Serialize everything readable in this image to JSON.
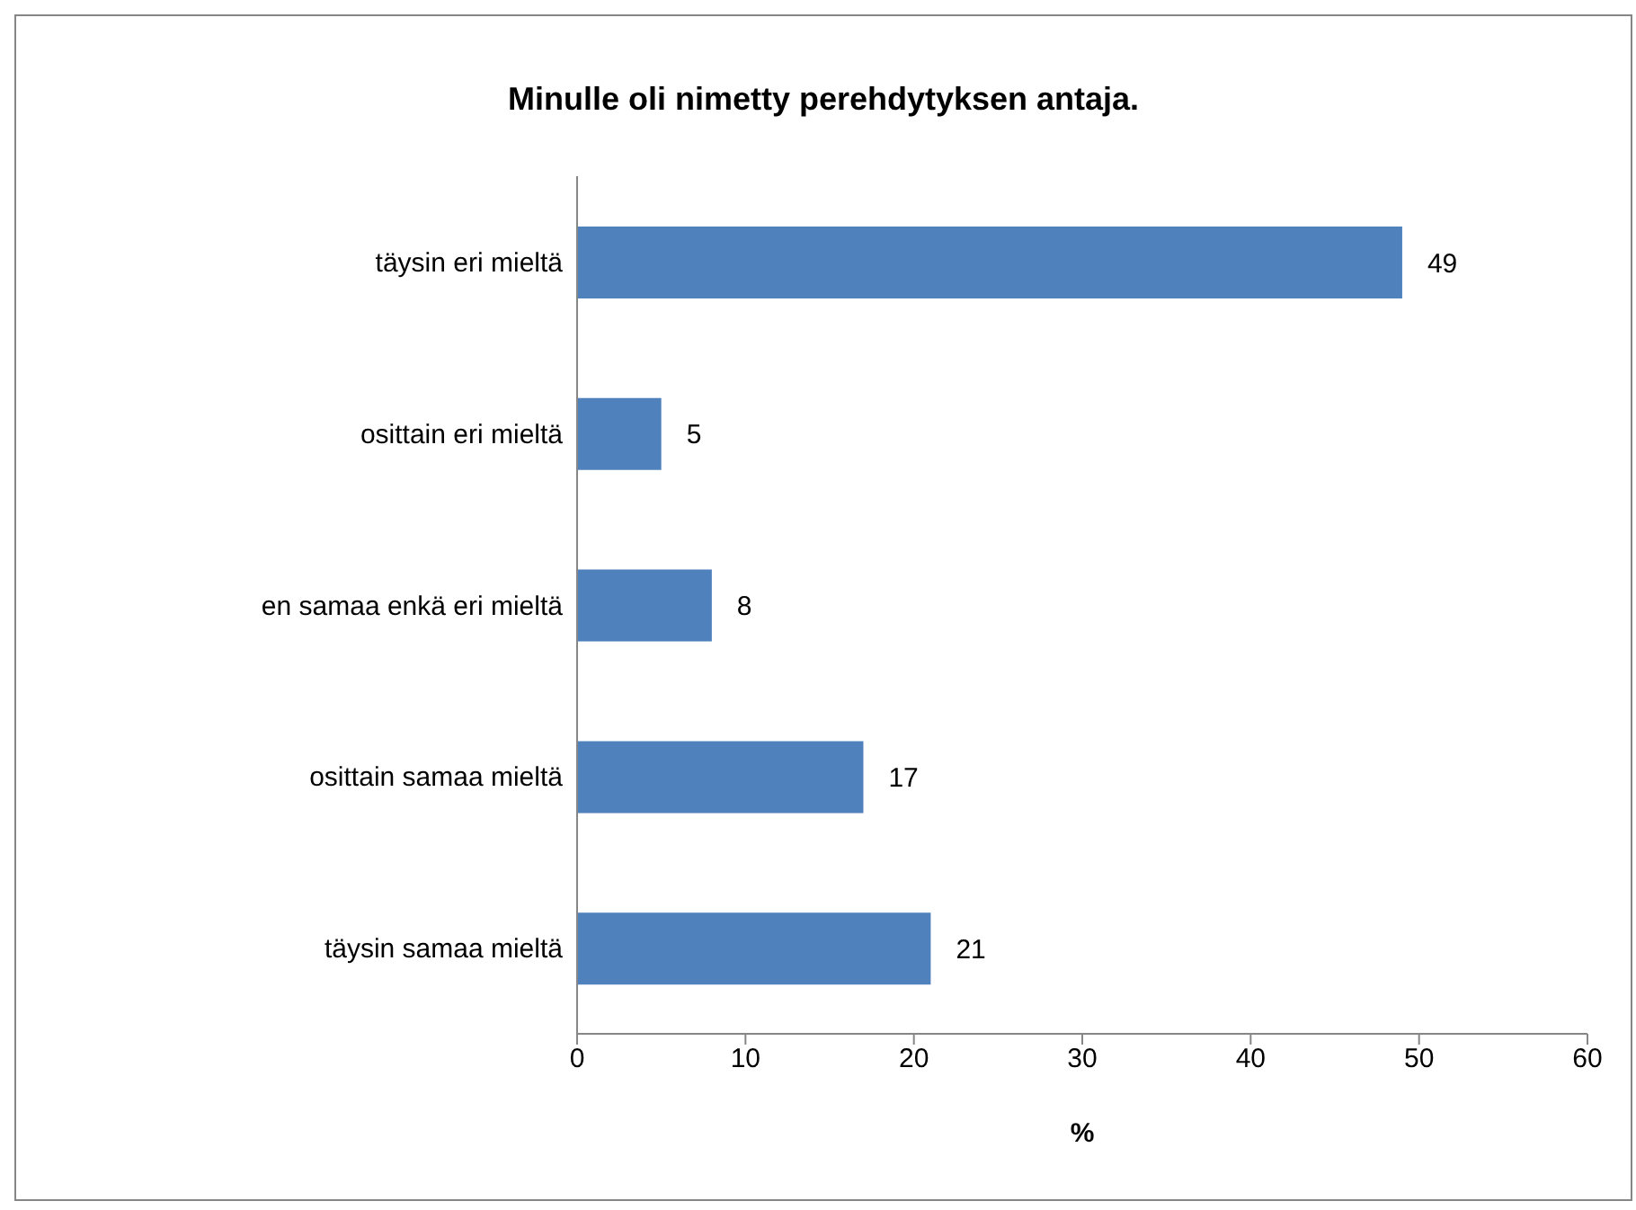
{
  "chart_data": {
    "type": "bar",
    "orientation": "horizontal",
    "title": "Minulle oli nimetty perehdytyksen antaja.",
    "xlabel": "%",
    "categories": [
      "täysin eri mieltä",
      "osittain eri mieltä",
      "en samaa enkä eri mieltä",
      "osittain samaa mieltä",
      "täysin samaa mieltä"
    ],
    "values": [
      49,
      5,
      8,
      17,
      21
    ],
    "color": "#4f81bd",
    "xlim": [
      0,
      60
    ],
    "xticks": [
      0,
      10,
      20,
      30,
      40,
      50,
      60
    ],
    "data_labels": true,
    "grid": false,
    "legend": false
  }
}
